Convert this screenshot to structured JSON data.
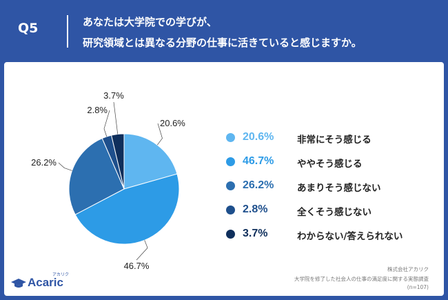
{
  "header": {
    "qno": "Q5",
    "line1": "あなたは大学院での学びが、",
    "line2": "研究領域とは異なる分野の仕事に活きていると感じますか。"
  },
  "chart_data": {
    "type": "pie",
    "categories": [
      "非常にそう感じる",
      "ややそう感じる",
      "あまりそう感じない",
      "全くそう感じない",
      "わからない/答えられない"
    ],
    "values": [
      20.6,
      46.7,
      26.2,
      2.8,
      3.7
    ],
    "labels": [
      "20.6%",
      "46.7%",
      "26.2%",
      "2.8%",
      "3.7%"
    ],
    "colors": [
      "#5fb6f0",
      "#2d9be6",
      "#2c6fb0",
      "#1e4f8c",
      "#0f2f5c"
    ],
    "legend_text_colors": [
      "#5fb6f0",
      "#2d9be6",
      "#2c6fb0",
      "#1e4f8c",
      "#0f2f5c"
    ],
    "start_angle_deg": 0,
    "direction": "clockwise",
    "legend_position": "right"
  },
  "footer": {
    "brand": "Acaric",
    "brand_kana": "アカリク",
    "src1": "株式会社アカリク",
    "src2": "大学院を修了した社会人の仕事の満足度に関する実態調査",
    "src3": "(n=107)"
  }
}
